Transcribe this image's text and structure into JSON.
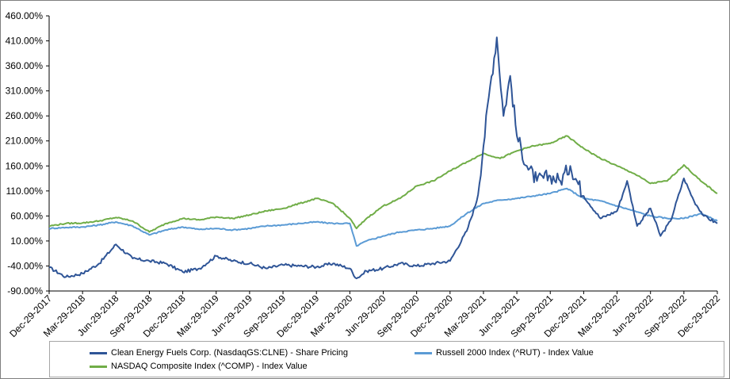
{
  "chart_data": {
    "type": "line",
    "title": "",
    "xlabel": "",
    "ylabel": "",
    "ylim": [
      -90,
      460
    ],
    "yticks": [
      "460.00%",
      "410.00%",
      "360.00%",
      "310.00%",
      "260.00%",
      "210.00%",
      "160.00%",
      "110.00%",
      "60.00%",
      "10.00%",
      "-40.00%",
      "-90.00%"
    ],
    "xticks": [
      "Dec-29-2017",
      "Mar-29-2018",
      "Jun-29-2018",
      "Sep-29-2018",
      "Dec-29-2018",
      "Mar-29-2019",
      "Jun-29-2019",
      "Sep-29-2019",
      "Dec-29-2019",
      "Mar-29-2020",
      "Jun-29-2020",
      "Sep-29-2020",
      "Dec-29-2020",
      "Mar-29-2021",
      "Jun-29-2021",
      "Sep-29-2021",
      "Dec-29-2021",
      "Mar-29-2022",
      "Jun-29-2022",
      "Sep-29-2022",
      "Dec-29-2022"
    ],
    "grid": false,
    "series": [
      {
        "name": "Clean Energy Fuels Corp. (NasdaqGS:CLNE) - Share Pricing",
        "color": "#2f5597",
        "x": [
          0,
          0.5,
          1,
          1.5,
          2,
          2.5,
          3,
          3.5,
          4,
          4.5,
          5,
          5.5,
          6,
          6.5,
          7,
          7.5,
          8,
          8.5,
          9,
          9.2,
          9.5,
          10,
          10.5,
          11,
          11.5,
          12,
          12.5,
          12.8,
          13,
          13.2,
          13.4,
          13.6,
          13.8,
          14,
          14.3,
          14.6,
          15,
          15.3,
          15.6,
          16,
          16.5,
          17,
          17.3,
          17.6,
          18,
          18.3,
          18.6,
          19,
          19.3,
          19.6,
          20
        ],
        "values": [
          -43,
          -62,
          -55,
          -35,
          3,
          -25,
          -30,
          -35,
          -52,
          -45,
          -20,
          -30,
          -35,
          -45,
          -38,
          -40,
          -42,
          -35,
          -45,
          -65,
          -50,
          -45,
          -35,
          -40,
          -35,
          -30,
          30,
          90,
          200,
          320,
          417,
          260,
          340,
          220,
          160,
          130,
          140,
          130,
          160,
          100,
          55,
          70,
          130,
          40,
          75,
          20,
          50,
          135,
          90,
          60,
          45
        ]
      },
      {
        "name": "Russell 2000 Index (^RUT) - Index Value",
        "color": "#5b9bd5",
        "x": [
          0,
          0.5,
          1,
          1.5,
          2,
          2.5,
          3,
          3.5,
          4,
          4.5,
          5,
          5.5,
          6,
          6.5,
          7,
          7.5,
          8,
          8.5,
          9,
          9.2,
          9.5,
          10,
          10.5,
          11,
          11.5,
          12,
          12.5,
          13,
          13.5,
          14,
          14.5,
          15,
          15.5,
          16,
          16.5,
          17,
          17.5,
          18,
          18.5,
          19,
          19.5,
          20
        ],
        "values": [
          35,
          37,
          38,
          42,
          48,
          40,
          22,
          32,
          38,
          33,
          35,
          32,
          35,
          40,
          42,
          45,
          48,
          45,
          45,
          0,
          10,
          20,
          28,
          32,
          35,
          40,
          65,
          85,
          92,
          95,
          100,
          105,
          115,
          95,
          90,
          80,
          70,
          60,
          55,
          55,
          65,
          50
        ]
      },
      {
        "name": "NASDAQ Composite Index (^COMP) - Index Value",
        "color": "#70ad47",
        "x": [
          0,
          0.5,
          1,
          1.5,
          2,
          2.5,
          3,
          3.5,
          4,
          4.5,
          5,
          5.5,
          6,
          6.5,
          7,
          7.5,
          8,
          8.5,
          9,
          9.2,
          9.5,
          10,
          10.5,
          11,
          11.5,
          12,
          12.5,
          13,
          13.5,
          14,
          14.5,
          15,
          15.5,
          16,
          16.5,
          17,
          17.5,
          18,
          18.5,
          19,
          19.5,
          20
        ],
        "values": [
          40,
          45,
          46,
          50,
          57,
          50,
          28,
          45,
          55,
          52,
          58,
          55,
          62,
          70,
          75,
          85,
          95,
          85,
          55,
          35,
          55,
          80,
          95,
          120,
          130,
          150,
          168,
          185,
          175,
          190,
          200,
          205,
          220,
          195,
          175,
          160,
          145,
          125,
          130,
          162,
          130,
          105
        ]
      }
    ]
  }
}
